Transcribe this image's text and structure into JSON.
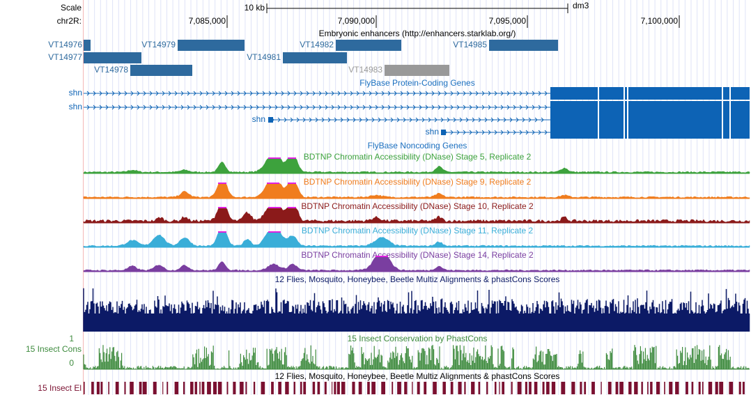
{
  "ruler": {
    "scale": "Scale",
    "size": "10 kb",
    "assembly": "dm3",
    "chrom": "chr2R:",
    "positions": [
      "7,085,000",
      "7,090,000",
      "7,095,000",
      "7,100,000"
    ]
  },
  "enhancers": {
    "title": "Embryonic enhancers (http://enhancers.starklab.org/)",
    "items": [
      "VT14976",
      "VT14977",
      "VT14979",
      "VT14978",
      "VT14982",
      "VT14981",
      "VT14983",
      "VT14985"
    ]
  },
  "genes": {
    "title": "FlyBase Protein-Coding Genes",
    "names": [
      "shn",
      "shn",
      "shn",
      "shn"
    ]
  },
  "noncoding": {
    "title": "FlyBase Noncoding Genes"
  },
  "dnase": [
    {
      "title": "BDTNP Chromatin Accessibility (DNase) Stage 5, Replicate 2",
      "color": "#3da23d"
    },
    {
      "title": "BDTNP Chromatin Accessibility (DNase) Stage 9, Replicate 2",
      "color": "#f07d1e"
    },
    {
      "title": "BDTNP Chromatin Accessibility (DNase) Stage 10, Replicate 2",
      "color": "#8b1a1a"
    },
    {
      "title": "BDTNP Chromatin Accessibility (DNase) Stage 11, Replicate 2",
      "color": "#3aaed8"
    },
    {
      "title": "BDTNP Chromatin Accessibility (DNase) Stage 14, Replicate 2",
      "color": "#7a3ea0"
    }
  ],
  "multiz": {
    "title": "12 Flies, Mosquito, Honeybee, Beetle Multiz Alignments & phastCons Scores"
  },
  "phastcons": {
    "label": "15 Insect Cons",
    "title": "15 Insect Conservation by PhastCons",
    "max": 1,
    "min": 0
  },
  "elements": {
    "title": "12 Flies, Mosquito, Honeybee, Beetle Multiz Alignments & phastCons Scores",
    "label": "15 Insect El"
  }
}
